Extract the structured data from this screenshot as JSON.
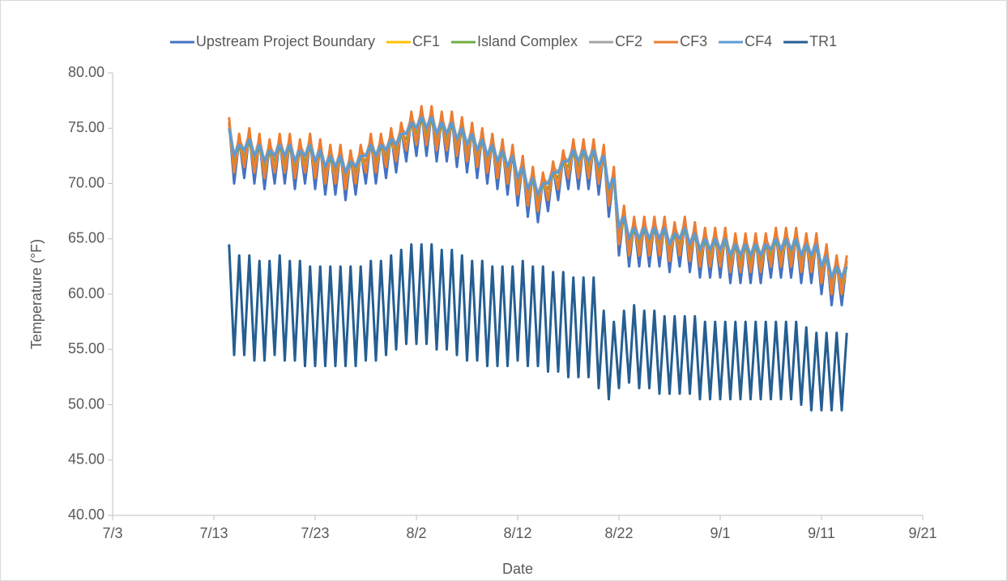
{
  "chart_data": {
    "type": "line",
    "xlabel": "Date",
    "ylabel": "Temperature (°F)",
    "xlim": [
      0,
      80
    ],
    "xticks": [
      {
        "value": 0,
        "label": "7/3"
      },
      {
        "value": 10,
        "label": "7/13"
      },
      {
        "value": 20,
        "label": "7/23"
      },
      {
        "value": 30,
        "label": "8/2"
      },
      {
        "value": 40,
        "label": "8/12"
      },
      {
        "value": 50,
        "label": "8/22"
      },
      {
        "value": 60,
        "label": "9/1"
      },
      {
        "value": 70,
        "label": "9/11"
      },
      {
        "value": 80,
        "label": "9/21"
      }
    ],
    "ylim": [
      40,
      80
    ],
    "yticks": [
      {
        "value": 40,
        "label": "40.00"
      },
      {
        "value": 45,
        "label": "45.00"
      },
      {
        "value": 50,
        "label": "50.00"
      },
      {
        "value": 55,
        "label": "55.00"
      },
      {
        "value": 60,
        "label": "60.00"
      },
      {
        "value": 65,
        "label": "65.00"
      },
      {
        "value": 70,
        "label": "70.00"
      },
      {
        "value": 75,
        "label": "75.00"
      },
      {
        "value": 80,
        "label": "80.00"
      }
    ],
    "grid": false,
    "legend": "top",
    "x": [
      11.5,
      12,
      12.5,
      13,
      13.5,
      14,
      14.5,
      15,
      15.5,
      16,
      16.5,
      17,
      17.5,
      18,
      18.5,
      19,
      19.5,
      20,
      20.5,
      21,
      21.5,
      22,
      22.5,
      23,
      23.5,
      24,
      24.5,
      25,
      25.5,
      26,
      26.5,
      27,
      27.5,
      28,
      28.5,
      29,
      29.5,
      30,
      30.5,
      31,
      31.5,
      32,
      32.5,
      33,
      33.5,
      34,
      34.5,
      35,
      35.5,
      36,
      36.5,
      37,
      37.5,
      38,
      38.5,
      39,
      39.5,
      40,
      40.5,
      41,
      41.5,
      42,
      42.5,
      43,
      43.5,
      44,
      44.5,
      45,
      45.5,
      46,
      46.5,
      47,
      47.5,
      48,
      48.5,
      49,
      49.5,
      50,
      50.5,
      51,
      51.5,
      52,
      52.5,
      53,
      53.5,
      54,
      54.5,
      55,
      55.5,
      56,
      56.5,
      57,
      57.5,
      58,
      58.5,
      59,
      59.5,
      60,
      60.5,
      61,
      61.5,
      62,
      62.5,
      63,
      63.5,
      64,
      64.5,
      65,
      65.5,
      66,
      66.5,
      67,
      67.5,
      68,
      68.5,
      69,
      69.5,
      70,
      70.5,
      71,
      71.5,
      72,
      72.5
    ],
    "series": [
      {
        "name": "Upstream Project Boundary",
        "color": "#4472c4",
        "values": [
          75.5,
          70,
          74,
          70.5,
          74.5,
          70,
          74,
          69.5,
          73.5,
          70,
          74,
          70,
          74,
          69.5,
          73.5,
          70,
          74,
          69.5,
          73.5,
          69,
          73,
          69,
          73,
          68.5,
          72.5,
          69,
          73,
          70,
          74,
          70,
          74,
          70.5,
          74.5,
          71,
          75,
          72,
          76,
          72.5,
          76.5,
          72.5,
          76.5,
          72,
          76,
          72,
          76,
          71.5,
          75.5,
          71,
          75,
          70.5,
          74.5,
          70,
          74,
          69.5,
          73.5,
          69,
          73,
          68,
          72,
          67,
          71,
          66.5,
          70.5,
          67.5,
          71.5,
          68.5,
          72.5,
          69.5,
          73.5,
          69.5,
          73.5,
          69.5,
          73.5,
          69,
          73,
          67,
          71,
          63.5,
          67.5,
          62.5,
          66.5,
          62.5,
          66.5,
          62.5,
          66.5,
          62.5,
          66.5,
          62,
          66,
          62.5,
          66.5,
          62,
          66,
          61.5,
          65.5,
          61.5,
          65.5,
          61.5,
          65.5,
          61,
          65,
          61,
          65,
          61,
          65,
          61,
          65,
          61.5,
          65.5,
          61.5,
          65.5,
          61.5,
          65.5,
          61,
          65,
          61,
          65,
          60,
          64,
          59,
          63,
          59,
          63
        ]
      },
      {
        "name": "CF1",
        "color": "#ffc000",
        "values": [
          75.5,
          71,
          74,
          71.5,
          74.5,
          71,
          74,
          70.5,
          73.5,
          71,
          74,
          71,
          74,
          70.5,
          73.5,
          71,
          74,
          70.5,
          73.5,
          70,
          73,
          70,
          73,
          69.5,
          72.5,
          70,
          73,
          71,
          74,
          71,
          74,
          71.5,
          74.5,
          72,
          75,
          73,
          76,
          73.5,
          76.5,
          73.5,
          76.5,
          73,
          76,
          73,
          76,
          72.5,
          75.5,
          72,
          75,
          71.5,
          74.5,
          71,
          74,
          70.5,
          73.5,
          70,
          73,
          69,
          72,
          68,
          71,
          67.5,
          70.5,
          68.5,
          71.5,
          69.5,
          72.5,
          70.5,
          73.5,
          70.5,
          73.5,
          70.5,
          73.5,
          70,
          73,
          68,
          71,
          64.5,
          67.5,
          63.5,
          66.5,
          63.5,
          66.5,
          63.5,
          66.5,
          63.5,
          66.5,
          63,
          66,
          63.5,
          66.5,
          63,
          66,
          62.5,
          65.5,
          62.5,
          65.5,
          62.5,
          65.5,
          62,
          65,
          62,
          65,
          62,
          65,
          62,
          65,
          62.5,
          65.5,
          62.5,
          65.5,
          62.5,
          65.5,
          62,
          65,
          62,
          65,
          61,
          64,
          60,
          63,
          60,
          63
        ]
      },
      {
        "name": "Island Complex",
        "color": "#70ad47",
        "values": [
          75,
          72,
          73.5,
          72.5,
          74,
          72,
          73.5,
          71.5,
          73,
          72,
          73.5,
          72,
          73.5,
          71.5,
          73,
          72,
          73.5,
          71.5,
          73,
          71,
          72.5,
          71,
          72.5,
          70.5,
          72,
          71,
          72.5,
          72,
          73.5,
          72,
          73.5,
          72.5,
          74,
          73,
          74.5,
          74,
          75.5,
          74.5,
          76,
          74.5,
          76,
          74,
          75.5,
          74,
          75.5,
          73.5,
          75,
          73,
          74.5,
          72.5,
          74,
          72,
          73.5,
          71.5,
          73,
          71,
          72.5,
          70,
          71.5,
          69,
          70.5,
          68.5,
          70,
          69.5,
          71,
          70.5,
          72,
          71.5,
          73,
          71.5,
          73,
          71.5,
          73,
          71,
          72.5,
          69,
          70.5,
          65.5,
          67,
          64.5,
          66,
          64.5,
          66,
          64.5,
          66,
          64.5,
          66,
          64,
          65.5,
          64.5,
          66,
          64,
          65.5,
          63.5,
          65,
          63.5,
          65,
          63.5,
          65,
          63,
          64.5,
          63,
          64.5,
          63,
          64.5,
          63,
          64.5,
          63.5,
          65,
          63.5,
          65,
          63.5,
          65,
          63,
          64.5,
          63,
          64.5,
          62,
          63.5,
          61,
          62.5,
          61,
          62.5
        ]
      },
      {
        "name": "CF2",
        "color": "#a5a5a5",
        "values": [
          75.5,
          72.5,
          74,
          73,
          74.5,
          72.5,
          74,
          72,
          73.5,
          72.5,
          74,
          72.5,
          74,
          72,
          73.5,
          72.5,
          74,
          72,
          73.5,
          71.5,
          73,
          71.5,
          73,
          71,
          72.5,
          71.5,
          73,
          72.5,
          74,
          72.5,
          74,
          73,
          74.5,
          73.5,
          75,
          74.5,
          76,
          75,
          76.5,
          75,
          76.5,
          74.5,
          76,
          74.5,
          76,
          74,
          75.5,
          73.5,
          75,
          73,
          74.5,
          72.5,
          74,
          72,
          73.5,
          71.5,
          73,
          70.5,
          72,
          69.5,
          71,
          69,
          70.5,
          70,
          71.5,
          71,
          72.5,
          72,
          73.5,
          72,
          73.5,
          72,
          73.5,
          71.5,
          73,
          69.5,
          71,
          66,
          67.5,
          65,
          66.5,
          65,
          66.5,
          65,
          66.5,
          65,
          66.5,
          64.5,
          66,
          65,
          66.5,
          64.5,
          66,
          64,
          65.5,
          64,
          65.5,
          64,
          65.5,
          63.5,
          65,
          63.5,
          65,
          63.5,
          65,
          63.5,
          65,
          64,
          65.5,
          64,
          65.5,
          64,
          65.5,
          63.5,
          65,
          63.5,
          65,
          62.5,
          64,
          61.5,
          63,
          61.5,
          63
        ]
      },
      {
        "name": "CF3",
        "color": "#ed7d31",
        "values": [
          76,
          71,
          74.5,
          71.5,
          75,
          71,
          74.5,
          70.5,
          74,
          71,
          74.5,
          71,
          74.5,
          70.5,
          74,
          71,
          74.5,
          70.5,
          74,
          70,
          73.5,
          70,
          73.5,
          69.5,
          73,
          70,
          73.5,
          71,
          74.5,
          71,
          74.5,
          71.5,
          75,
          72,
          75.5,
          73,
          76.5,
          73.5,
          77,
          73.5,
          77,
          73,
          76.5,
          73,
          76.5,
          72.5,
          76,
          72,
          75.5,
          71.5,
          75,
          71,
          74.5,
          70.5,
          74,
          70,
          73.5,
          69,
          72.5,
          68,
          71.5,
          67.5,
          71,
          68.5,
          72,
          69.5,
          73,
          70.5,
          74,
          70.5,
          74,
          70.5,
          74,
          70,
          73.5,
          68,
          71.5,
          64.5,
          68,
          63.5,
          67,
          63.5,
          67,
          63.5,
          67,
          63.5,
          67,
          63,
          66.5,
          63.5,
          67,
          63,
          66.5,
          62.5,
          66,
          62.5,
          66,
          62.5,
          66,
          62,
          65.5,
          62,
          65.5,
          62,
          65.5,
          62,
          65.5,
          62.5,
          66,
          62.5,
          66,
          62.5,
          66,
          62,
          65.5,
          62,
          65.5,
          61,
          64.5,
          60,
          63.5,
          60,
          63.5
        ]
      },
      {
        "name": "CF4",
        "color": "#5b9bd5",
        "values": [
          75,
          72.5,
          73.5,
          73,
          74,
          72.5,
          73.5,
          72,
          73,
          72.5,
          73.5,
          72.5,
          73.5,
          72,
          73,
          72.5,
          73.5,
          72,
          73,
          71.5,
          72.5,
          71.5,
          72.5,
          71,
          72,
          71.5,
          72.5,
          72.5,
          73.5,
          72.5,
          73.5,
          73,
          74,
          73.5,
          74.5,
          74.5,
          75.5,
          75,
          76,
          75,
          76,
          74.5,
          75.5,
          74.5,
          75.5,
          74,
          75,
          73.5,
          74.5,
          73,
          74,
          72.5,
          73.5,
          72,
          73,
          71.5,
          72.5,
          70.5,
          71.5,
          69.5,
          70.5,
          69,
          70,
          70,
          71,
          71,
          72,
          72,
          73,
          72,
          73,
          72,
          73,
          71.5,
          72.5,
          69.5,
          70.5,
          66,
          67,
          65,
          66,
          65,
          66,
          65,
          66,
          65,
          66,
          64.5,
          65.5,
          65,
          66,
          64.5,
          65.5,
          64,
          65,
          64,
          65,
          64,
          65,
          63.5,
          64.5,
          63.5,
          64.5,
          63.5,
          64.5,
          63.5,
          64.5,
          64,
          65,
          64,
          65,
          64,
          65,
          63.5,
          64.5,
          63.5,
          64.5,
          62.5,
          63.5,
          61.5,
          62.5,
          61.5,
          62.5
        ]
      },
      {
        "name": "TR1",
        "color": "#255e91",
        "values": [
          64.5,
          54.5,
          63.5,
          54.5,
          63.5,
          54,
          63,
          54,
          63,
          54.5,
          63.5,
          54,
          63,
          54,
          63,
          53.5,
          62.5,
          53.5,
          62.5,
          53.5,
          62.5,
          53.5,
          62.5,
          53.5,
          62.5,
          53.5,
          62.5,
          54,
          63,
          54,
          63,
          54.5,
          63.5,
          55,
          64,
          55.5,
          64.5,
          55.5,
          64.5,
          55.5,
          64.5,
          55,
          64,
          55,
          64,
          54.5,
          63.5,
          54,
          63,
          54,
          63,
          53.5,
          62.5,
          53.5,
          62.5,
          53.5,
          62.5,
          54,
          63,
          53.5,
          62.5,
          53.5,
          62.5,
          53,
          62,
          53,
          62,
          52.5,
          61.5,
          52.5,
          61.5,
          52.5,
          61.5,
          51.5,
          58.5,
          50.5,
          57.5,
          51.5,
          58.5,
          52,
          59,
          51.5,
          58.5,
          51.5,
          58.5,
          51,
          58,
          51,
          58,
          51,
          58,
          51,
          58,
          50.5,
          57.5,
          50.5,
          57.5,
          50.5,
          57.5,
          50.5,
          57.5,
          50.5,
          57.5,
          50.5,
          57.5,
          50.5,
          57.5,
          50.5,
          57.5,
          50.5,
          57.5,
          50.5,
          57.5,
          50,
          57,
          49.5,
          56.5,
          49.5,
          56.5,
          49.5,
          56.5,
          49.5,
          56.5
        ]
      }
    ]
  }
}
